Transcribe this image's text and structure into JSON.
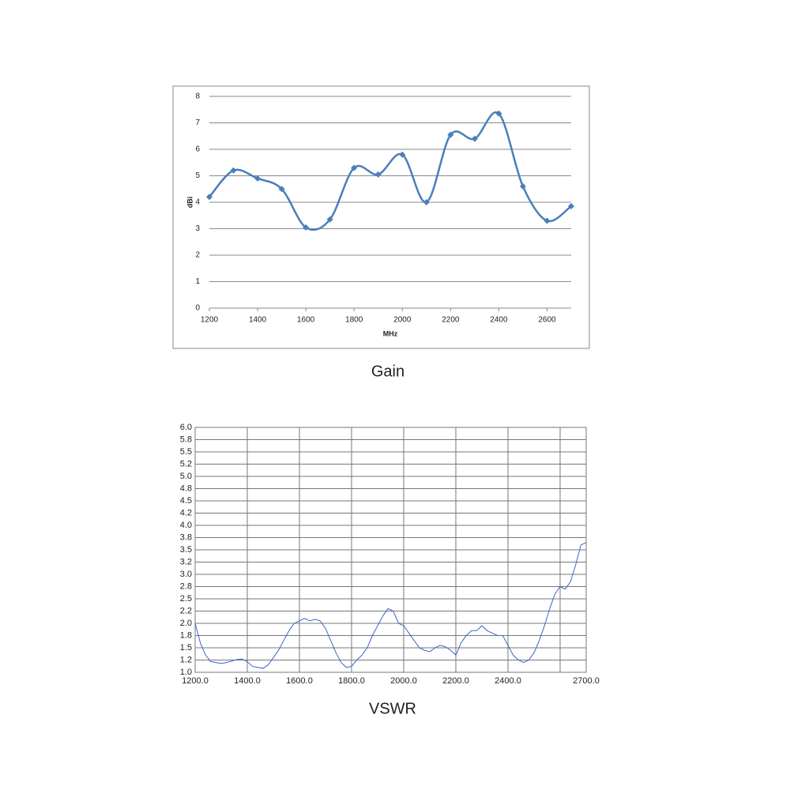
{
  "chart_data": [
    {
      "type": "line",
      "title": "Gain",
      "xlabel": "MHz",
      "ylabel": "dBi",
      "x": [
        1200,
        1300,
        1400,
        1500,
        1600,
        1700,
        1800,
        1900,
        2000,
        2100,
        2200,
        2300,
        2400,
        2500,
        2600,
        2700
      ],
      "series": [
        {
          "name": "Gain",
          "color": "#4a7ebb",
          "values": [
            4.2,
            5.2,
            4.9,
            4.5,
            3.05,
            3.35,
            5.3,
            5.05,
            5.8,
            4.0,
            6.55,
            6.4,
            7.35,
            4.6,
            3.3,
            3.85
          ]
        }
      ],
      "xlim": [
        1200,
        2700
      ],
      "xticks": [
        1200,
        1400,
        1600,
        1800,
        2000,
        2200,
        2400,
        2600
      ],
      "ylim": [
        0,
        8
      ],
      "yticks": [
        0,
        1,
        2,
        3,
        4,
        5,
        6,
        7,
        8
      ],
      "grid": "y",
      "smooth": true,
      "markers": "diamond"
    },
    {
      "type": "line",
      "title": "VSWR",
      "x": [
        1200,
        1220,
        1240,
        1260,
        1280,
        1300,
        1320,
        1340,
        1360,
        1380,
        1400,
        1420,
        1440,
        1460,
        1480,
        1500,
        1520,
        1540,
        1560,
        1580,
        1600,
        1620,
        1640,
        1660,
        1680,
        1700,
        1720,
        1740,
        1760,
        1780,
        1800,
        1820,
        1840,
        1860,
        1880,
        1900,
        1920,
        1940,
        1960,
        1980,
        2000,
        2020,
        2040,
        2060,
        2080,
        2100,
        2120,
        2140,
        2160,
        2180,
        2200,
        2220,
        2240,
        2260,
        2280,
        2300,
        2320,
        2340,
        2360,
        2380,
        2400,
        2420,
        2440,
        2460,
        2480,
        2500,
        2520,
        2540,
        2560,
        2580,
        2600,
        2620,
        2640,
        2660,
        2680,
        2700
      ],
      "series": [
        {
          "name": "VSWR",
          "color": "#3a66c8",
          "values": [
            2.0,
            1.6,
            1.35,
            1.22,
            1.2,
            1.18,
            1.2,
            1.23,
            1.26,
            1.27,
            1.22,
            1.12,
            1.1,
            1.08,
            1.15,
            1.3,
            1.45,
            1.65,
            1.85,
            2.0,
            2.05,
            2.1,
            2.05,
            2.08,
            2.05,
            1.9,
            1.65,
            1.4,
            1.2,
            1.1,
            1.12,
            1.25,
            1.35,
            1.5,
            1.75,
            1.95,
            2.15,
            2.3,
            2.25,
            2.0,
            1.95,
            1.8,
            1.65,
            1.5,
            1.45,
            1.42,
            1.5,
            1.55,
            1.52,
            1.45,
            1.35,
            1.6,
            1.75,
            1.85,
            1.85,
            1.95,
            1.85,
            1.8,
            1.75,
            1.75,
            1.55,
            1.35,
            1.25,
            1.2,
            1.25,
            1.4,
            1.65,
            1.95,
            2.3,
            2.6,
            2.75,
            2.7,
            2.85,
            3.2,
            3.6,
            3.65
          ]
        }
      ],
      "xlim": [
        1200,
        2700
      ],
      "xticks": [
        {
          "value": 1200,
          "label": "1200.0"
        },
        {
          "value": 1400,
          "label": "1400.0"
        },
        {
          "value": 1600,
          "label": "1600.0"
        },
        {
          "value": 1800,
          "label": "1800.0"
        },
        {
          "value": 2000,
          "label": "2000.0"
        },
        {
          "value": 2200,
          "label": "2200.0"
        },
        {
          "value": 2400,
          "label": "2400.0"
        },
        {
          "value": 2600,
          "label": null
        },
        {
          "value": 2700,
          "label": "2700.0"
        }
      ],
      "ylim": [
        1,
        6
      ],
      "yticks": [
        {
          "value": 1,
          "label": "1.0"
        },
        {
          "value": 1.25,
          "label": "1.2"
        },
        {
          "value": 1.5,
          "label": "1.5"
        },
        {
          "value": 1.75,
          "label": "1.8"
        },
        {
          "value": 2,
          "label": "2.0"
        },
        {
          "value": 2.25,
          "label": "2.2"
        },
        {
          "value": 2.5,
          "label": "2.5"
        },
        {
          "value": 2.75,
          "label": "2.8"
        },
        {
          "value": 3,
          "label": "3.0"
        },
        {
          "value": 3.25,
          "label": "3.2"
        },
        {
          "value": 3.5,
          "label": "3.5"
        },
        {
          "value": 3.75,
          "label": "3.8"
        },
        {
          "value": 4,
          "label": "4.0"
        },
        {
          "value": 4.25,
          "label": "4.2"
        },
        {
          "value": 4.5,
          "label": "4.5"
        },
        {
          "value": 4.75,
          "label": "4.8"
        },
        {
          "value": 5,
          "label": "5.0"
        },
        {
          "value": 5.25,
          "label": "5.2"
        },
        {
          "value": 5.5,
          "label": "5.5"
        },
        {
          "value": 5.75,
          "label": "5.8"
        },
        {
          "value": 6,
          "label": "6.0"
        }
      ],
      "grid": "both",
      "smooth": false,
      "markers": "none"
    }
  ]
}
